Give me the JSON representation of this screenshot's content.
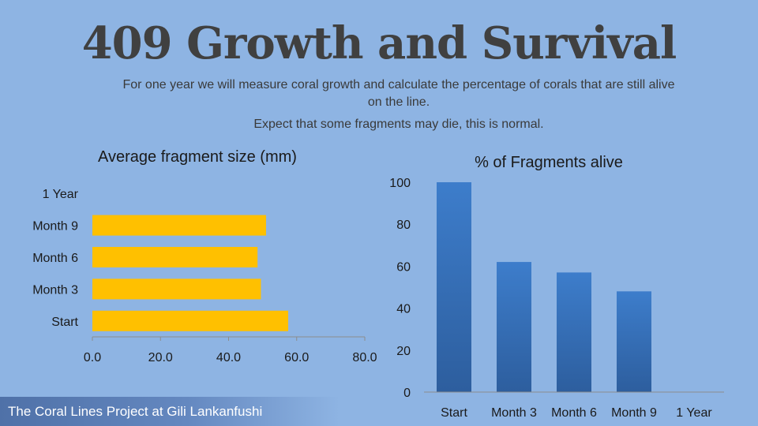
{
  "slide": {
    "title": "409 Growth and Survival",
    "subtitle_line1": "For one year we will measure coral growth and calculate the percentage of corals that are still alive on the line.",
    "subtitle_line2": "Expect that some fragments may die, this is normal.",
    "footer": "The Coral Lines Project at Gili Lankanfushi"
  },
  "colors": {
    "background": "#8eb4e3",
    "bar_left": "#ffc000",
    "bar_right": "#3d7ac8",
    "axis": "#8c8c8c"
  },
  "chart_data": [
    {
      "type": "bar",
      "orientation": "horizontal",
      "title": "Average fragment size (mm)",
      "categories": [
        "Start",
        "Month 3",
        "Month 6",
        "Month 9",
        "1 Year"
      ],
      "values": [
        57.5,
        49.5,
        48.5,
        51.0,
        null
      ],
      "xlim": [
        0,
        80
      ],
      "ticks": [
        "0.0",
        "20.0",
        "40.0",
        "60.0",
        "80.0"
      ],
      "grid": false
    },
    {
      "type": "bar",
      "orientation": "vertical",
      "title": "% of Fragments alive",
      "categories": [
        "Start",
        "Month 3",
        "Month 6",
        "Month 9",
        "1 Year"
      ],
      "values": [
        100,
        62,
        57,
        48,
        null
      ],
      "ylim": [
        0,
        100
      ],
      "ticks": [
        "0",
        "20",
        "40",
        "60",
        "80",
        "100"
      ],
      "grid": false
    }
  ]
}
